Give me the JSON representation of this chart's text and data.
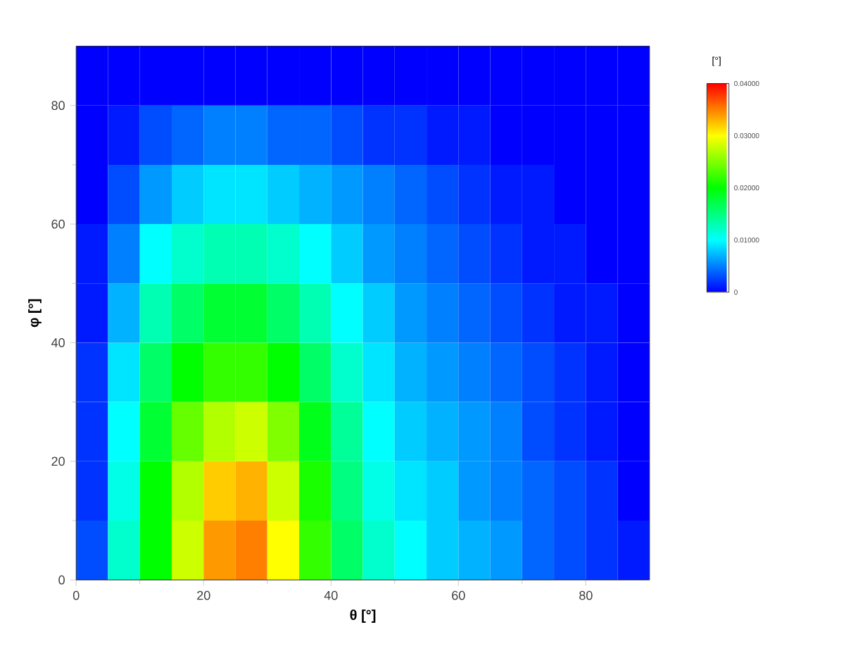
{
  "chart_data": {
    "type": "heatmap",
    "xlabel": "θ [°]",
    "ylabel": "φ [°]",
    "clabel": "[°]",
    "xlim": [
      0,
      90
    ],
    "ylim": [
      0,
      90
    ],
    "xticks": [
      0,
      20,
      40,
      60,
      80
    ],
    "yticks": [
      0,
      20,
      40,
      60,
      80
    ],
    "clim": [
      0,
      0.04
    ],
    "cticks": [
      {
        "value": 0,
        "label": "0"
      },
      {
        "value": 0.01,
        "label": "0.01000"
      },
      {
        "value": 0.02,
        "label": "0.02000"
      },
      {
        "value": 0.03,
        "label": "0.03000"
      },
      {
        "value": 0.04,
        "label": "0.04000"
      }
    ],
    "cells": [
      [
        0,
        0,
        0,
        0,
        0,
        0,
        0,
        0,
        0,
        0,
        0,
        0,
        0,
        0,
        0,
        0,
        0,
        0
      ],
      [
        0,
        0.001,
        0.003,
        0.004,
        0.005,
        0.005,
        0.004,
        0.004,
        0.003,
        0.002,
        0.002,
        0.001,
        0.001,
        0,
        0,
        0,
        0,
        0
      ],
      [
        0,
        0.003,
        0.006,
        0.008,
        0.009,
        0.009,
        0.008,
        0.007,
        0.006,
        0.005,
        0.004,
        0.003,
        0.002,
        0.001,
        0.001,
        0,
        0,
        0
      ],
      [
        0.001,
        0.005,
        0.01,
        0.012,
        0.013,
        0.013,
        0.012,
        0.01,
        0.008,
        0.006,
        0.005,
        0.004,
        0.003,
        0.002,
        0.001,
        0.001,
        0,
        0
      ],
      [
        0.001,
        0.007,
        0.013,
        0.016,
        0.018,
        0.018,
        0.016,
        0.013,
        0.01,
        0.008,
        0.006,
        0.005,
        0.004,
        0.003,
        0.002,
        0.001,
        0.001,
        0
      ],
      [
        0.002,
        0.009,
        0.016,
        0.02,
        0.022,
        0.022,
        0.02,
        0.016,
        0.012,
        0.009,
        0.007,
        0.006,
        0.005,
        0.004,
        0.003,
        0.002,
        0.001,
        0
      ],
      [
        0.002,
        0.01,
        0.018,
        0.024,
        0.027,
        0.028,
        0.025,
        0.019,
        0.014,
        0.01,
        0.008,
        0.007,
        0.006,
        0.005,
        0.003,
        0.002,
        0.001,
        0
      ],
      [
        0.002,
        0.011,
        0.02,
        0.027,
        0.032,
        0.033,
        0.028,
        0.021,
        0.015,
        0.011,
        0.009,
        0.008,
        0.006,
        0.005,
        0.004,
        0.003,
        0.002,
        0
      ],
      [
        0.003,
        0.012,
        0.02,
        0.028,
        0.034,
        0.035,
        0.03,
        0.022,
        0.016,
        0.012,
        0.01,
        0.008,
        0.007,
        0.006,
        0.004,
        0.003,
        0.002,
        0.001
      ]
    ]
  }
}
